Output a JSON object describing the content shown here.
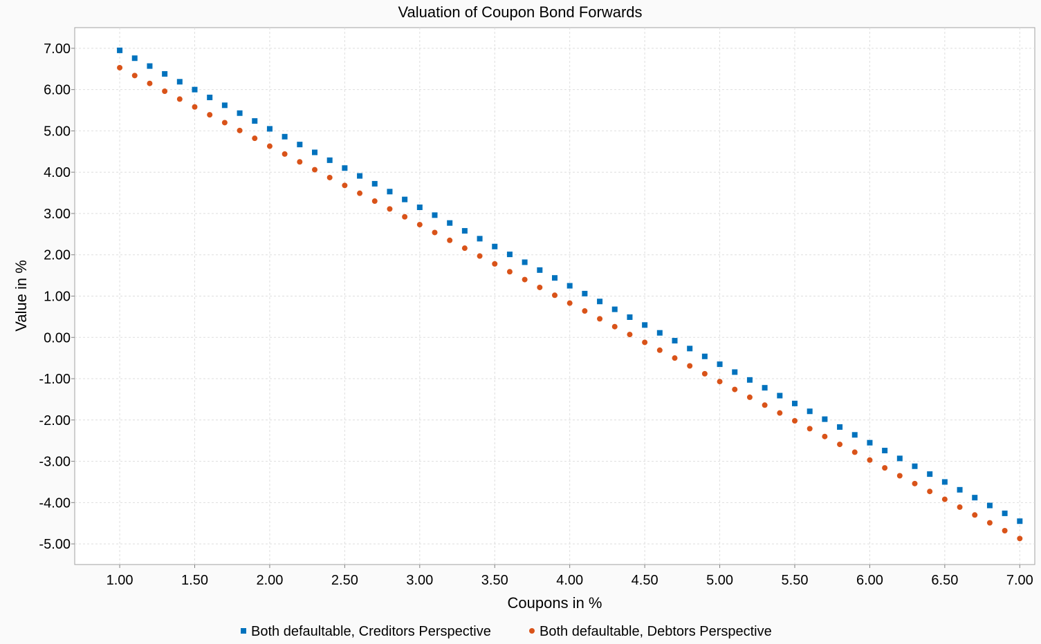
{
  "chart_data": {
    "type": "scatter",
    "title": "Valuation of Coupon Bond Forwards",
    "xlabel": "Coupons in %",
    "ylabel": "Value in %",
    "xlim": [
      0.7,
      7.1
    ],
    "ylim": [
      -5.5,
      7.5
    ],
    "xticks": [
      1.0,
      1.5,
      2.0,
      2.5,
      3.0,
      3.5,
      4.0,
      4.5,
      5.0,
      5.5,
      6.0,
      6.5,
      7.0
    ],
    "xtick_labels": [
      "1.00",
      "1.50",
      "2.00",
      "2.50",
      "3.00",
      "3.50",
      "4.00",
      "4.50",
      "5.00",
      "5.50",
      "6.00",
      "6.50",
      "7.00"
    ],
    "yticks": [
      7,
      6,
      5,
      4,
      3,
      2,
      1,
      0,
      -1,
      -2,
      -3,
      -4,
      -5
    ],
    "ytick_labels": [
      "7.00",
      "6.00",
      "5.00",
      "4.00",
      "3.00",
      "2.00",
      "1.00",
      "0.00",
      "-1.00",
      "-2.00",
      "-3.00",
      "-4.00",
      "-5.00"
    ],
    "grid": true,
    "legend_position": "bottom",
    "x": [
      1.0,
      1.1,
      1.2,
      1.3,
      1.4,
      1.5,
      1.6,
      1.7,
      1.8,
      1.9,
      2.0,
      2.1,
      2.2,
      2.3,
      2.4,
      2.5,
      2.6,
      2.7,
      2.8,
      2.9,
      3.0,
      3.1,
      3.2,
      3.3,
      3.4,
      3.5,
      3.6,
      3.7,
      3.8,
      3.9,
      4.0,
      4.1,
      4.2,
      4.3,
      4.4,
      4.5,
      4.6,
      4.7,
      4.8,
      4.9,
      5.0,
      5.1,
      5.2,
      5.3,
      5.4,
      5.5,
      5.6,
      5.7,
      5.8,
      5.9,
      6.0,
      6.1,
      6.2,
      6.3,
      6.4,
      6.5,
      6.6,
      6.7,
      6.8,
      6.9,
      7.0
    ],
    "series": [
      {
        "name": "Both defaultable, Creditors Perspective",
        "marker": "square",
        "color": "#0072bd",
        "y": [
          6.95,
          6.76,
          6.57,
          6.38,
          6.19,
          6.0,
          5.81,
          5.62,
          5.43,
          5.24,
          5.05,
          4.86,
          4.67,
          4.48,
          4.29,
          4.1,
          3.91,
          3.72,
          3.53,
          3.34,
          3.15,
          2.96,
          2.77,
          2.58,
          2.39,
          2.2,
          2.01,
          1.82,
          1.63,
          1.44,
          1.25,
          1.06,
          0.87,
          0.68,
          0.49,
          0.3,
          0.11,
          -0.08,
          -0.27,
          -0.46,
          -0.65,
          -0.84,
          -1.03,
          -1.22,
          -1.41,
          -1.6,
          -1.79,
          -1.98,
          -2.17,
          -2.36,
          -2.55,
          -2.74,
          -2.93,
          -3.12,
          -3.31,
          -3.5,
          -3.69,
          -3.88,
          -4.07,
          -4.26,
          -4.45
        ]
      },
      {
        "name": "Both defaultable, Debtors Perspective",
        "marker": "circle",
        "color": "#d95319",
        "y": [
          6.53,
          6.34,
          6.15,
          5.96,
          5.77,
          5.58,
          5.39,
          5.2,
          5.01,
          4.82,
          4.63,
          4.44,
          4.25,
          4.06,
          3.87,
          3.68,
          3.49,
          3.3,
          3.11,
          2.92,
          2.73,
          2.54,
          2.35,
          2.16,
          1.97,
          1.78,
          1.59,
          1.4,
          1.21,
          1.02,
          0.83,
          0.64,
          0.45,
          0.26,
          0.07,
          -0.12,
          -0.31,
          -0.5,
          -0.69,
          -0.88,
          -1.07,
          -1.26,
          -1.45,
          -1.64,
          -1.83,
          -2.02,
          -2.21,
          -2.4,
          -2.59,
          -2.78,
          -2.97,
          -3.16,
          -3.35,
          -3.54,
          -3.73,
          -3.92,
          -4.11,
          -4.3,
          -4.49,
          -4.68,
          -4.87
        ]
      }
    ]
  }
}
